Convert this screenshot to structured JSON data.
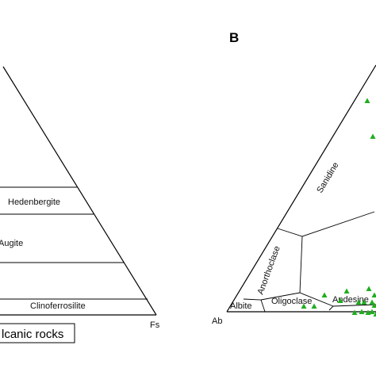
{
  "panel_a": {
    "fields": [
      "Hedenbergite",
      "Augite",
      "Clinoferrosilite"
    ],
    "corner_fs": "Fs",
    "caption_fragment": "lcanic rocks"
  },
  "panel_b": {
    "letter": "B",
    "corner_ab": "Ab",
    "fields": [
      "Sanidine",
      "Anorthoclase",
      "Albite",
      "Oligoclase",
      "Andesine"
    ],
    "marker_color": "#1fae1f",
    "marker_shape": "triangle",
    "marker_count": 18
  }
}
